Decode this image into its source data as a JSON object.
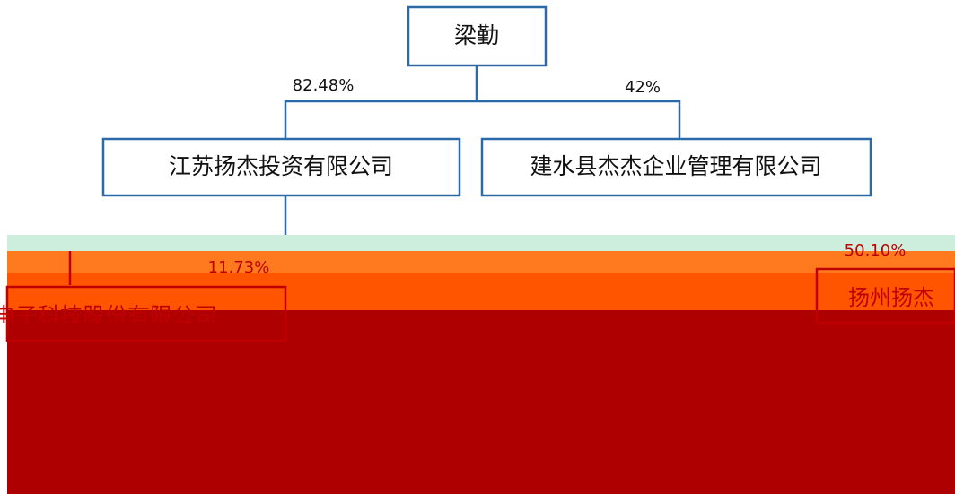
{
  "nodes": [
    {
      "label": "梁勤"
    },
    {
      "label": "江苏扬杰投资有限公司"
    },
    {
      "label": "建水县杰杰企业管理有限公司"
    },
    {
      "label": "电子科技股份有限公司"
    },
    {
      "label": "扬州扬杰"
    }
  ],
  "edges": [
    {
      "label": "82.48%"
    },
    {
      "label": "42%"
    },
    {
      "label": "11.73%"
    },
    {
      "label": "50.10%"
    }
  ]
}
